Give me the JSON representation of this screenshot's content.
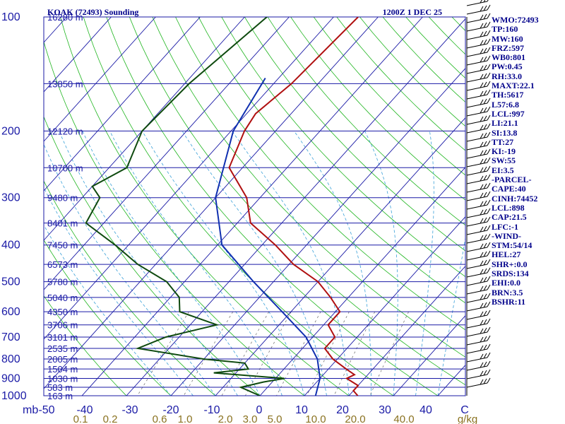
{
  "chart_data": {
    "type": "skew-t",
    "title": "KOAK (72493) Sounding",
    "datetime": "1200Z  1 DEC 25",
    "pressure_axis_label": "mb",
    "pressure_ticks": [
      100,
      200,
      300,
      400,
      500,
      600,
      700,
      800,
      900,
      1000
    ],
    "height_labels": [
      {
        "p": 100,
        "text": "16280 m"
      },
      {
        "p": 150,
        "text": "13850 m"
      },
      {
        "p": 200,
        "text": "12120 m"
      },
      {
        "p": 250,
        "text": "10700 m"
      },
      {
        "p": 300,
        "text": "9480 m"
      },
      {
        "p": 350,
        "text": "8401 m"
      },
      {
        "p": 400,
        "text": "7450 m"
      },
      {
        "p": 450,
        "text": "6573 m"
      },
      {
        "p": 500,
        "text": "5780 m"
      },
      {
        "p": 550,
        "text": "5040 m"
      },
      {
        "p": 600,
        "text": "4350 m"
      },
      {
        "p": 650,
        "text": "3706 m"
      },
      {
        "p": 700,
        "text": "3101 m"
      },
      {
        "p": 750,
        "text": "2535 m"
      },
      {
        "p": 800,
        "text": "2005 m"
      },
      {
        "p": 850,
        "text": "1504 m"
      },
      {
        "p": 900,
        "text": "1030 m"
      },
      {
        "p": 950,
        "text": "583 m"
      },
      {
        "p": 1000,
        "text": "163 m"
      }
    ],
    "temp_ticks": [
      "-50",
      "-40",
      "-30",
      "-20",
      "-10",
      "0",
      "10",
      "20",
      "30",
      "40",
      "C"
    ],
    "mixing_ratio_ticks": [
      "0.1",
      "0.2",
      "0.6",
      "1.0",
      "2.0",
      "3.0",
      "5.0",
      "10.0",
      "20.0",
      "40.0",
      "g/kg"
    ],
    "temperature": [
      [
        100,
        -54.5
      ],
      [
        150,
        -56
      ],
      [
        180,
        -58
      ],
      [
        200,
        -57
      ],
      [
        250,
        -53
      ],
      [
        300,
        -43
      ],
      [
        350,
        -37
      ],
      [
        400,
        -27
      ],
      [
        450,
        -19
      ],
      [
        500,
        -10
      ],
      [
        550,
        -4
      ],
      [
        600,
        1
      ],
      [
        650,
        1
      ],
      [
        700,
        5
      ],
      [
        750,
        5
      ],
      [
        800,
        9
      ],
      [
        850,
        14
      ],
      [
        880,
        17
      ],
      [
        900,
        16
      ],
      [
        940,
        20
      ],
      [
        970,
        20
      ],
      [
        1000,
        22
      ]
    ],
    "dewpoint": [
      [
        100,
        -75
      ],
      [
        150,
        -79
      ],
      [
        200,
        -80
      ],
      [
        250,
        -76
      ],
      [
        280,
        -80
      ],
      [
        300,
        -76
      ],
      [
        350,
        -74
      ],
      [
        400,
        -63
      ],
      [
        450,
        -54
      ],
      [
        500,
        -44
      ],
      [
        550,
        -38
      ],
      [
        600,
        -35
      ],
      [
        650,
        -24
      ],
      [
        700,
        -33
      ],
      [
        750,
        -37
      ],
      [
        800,
        -20
      ],
      [
        820,
        -10
      ],
      [
        850,
        -8
      ],
      [
        870,
        -15
      ],
      [
        900,
        2
      ],
      [
        920,
        -2
      ],
      [
        950,
        -6
      ],
      [
        1000,
        0
      ]
    ],
    "parcel": [
      [
        145,
        -63
      ],
      [
        200,
        -59.5
      ],
      [
        300,
        -50
      ],
      [
        400,
        -39
      ],
      [
        500,
        -24.5
      ],
      [
        600,
        -12
      ],
      [
        700,
        -1.5
      ],
      [
        800,
        5.5
      ],
      [
        900,
        10
      ],
      [
        1000,
        12.5
      ]
    ],
    "stats": [
      "WMO:72493",
      "TP:160",
      "MW:160",
      "FRZ:597",
      "WB0:801",
      "PW:0.45",
      "RH:33.0",
      "MAXT:22.1",
      "TH:5617",
      "L57:6.8",
      "LCL:997",
      "LI:21.1",
      "SI:13.8",
      "TT:27",
      "KI:-19",
      "SW:55",
      "EI:3.5",
      "-PARCEL-",
      "CAPE:40",
      "CINH:74452",
      "LCL:898",
      "CAP:21.5",
      "LFC:-1",
      "-WIND-",
      "STM:54/14",
      "HEL:27",
      "SHR+:0.0",
      "SRDS:134",
      "EHI:0.0",
      "BRN:3.5",
      "BSHR:11"
    ],
    "colors": {
      "isobar": "#1a1aa6",
      "isotherm": "#1a1aa6",
      "dry_adiabat": "#1fb51f",
      "moist_adiabat": "#3aa0d8",
      "mixing_ratio": "#666666",
      "temperature": "#b01010",
      "dewpoint": "#0f4a0f",
      "parcel": "#1030b0",
      "title": "#00008b",
      "mixing_label": "#8a7220"
    }
  }
}
